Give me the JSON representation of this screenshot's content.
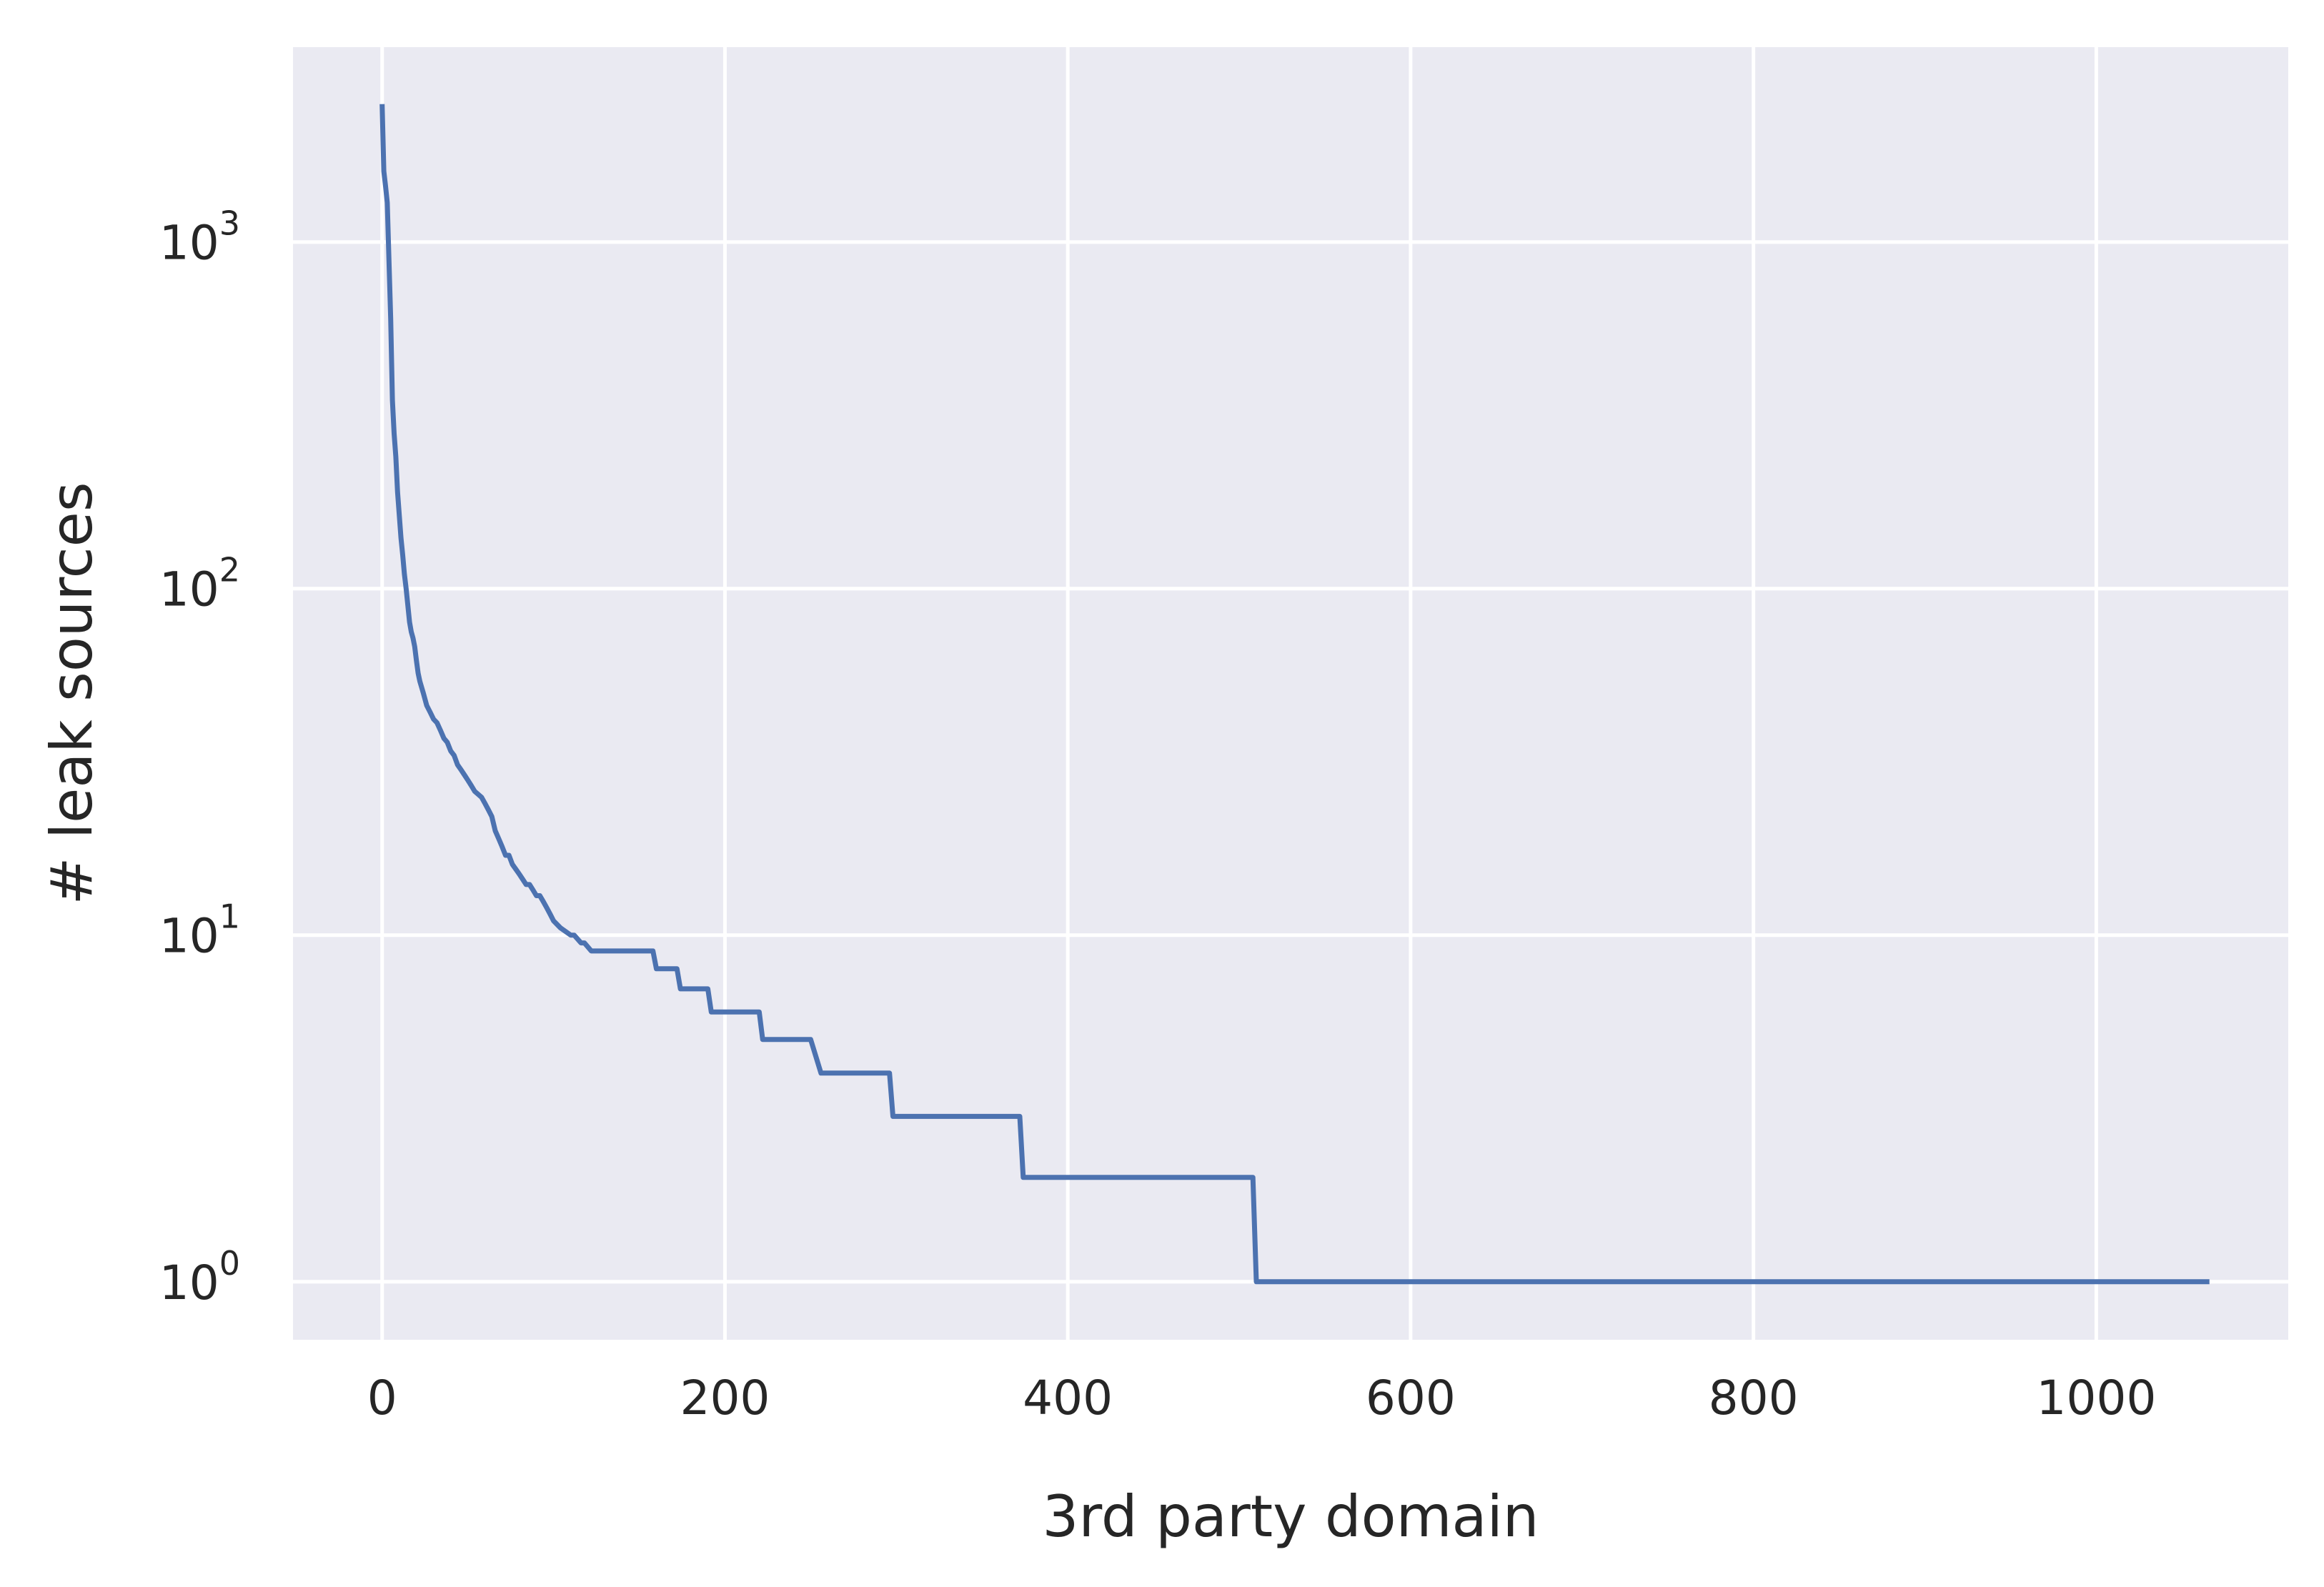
{
  "chart_data": {
    "type": "line",
    "title": "",
    "xlabel": "3rd party domain",
    "ylabel": "# leak sources",
    "xlim": [
      -52,
      1112
    ],
    "ylim": [
      0.68,
      3650
    ],
    "yscale": "log",
    "xticks": [
      0,
      200,
      400,
      600,
      800,
      1000
    ],
    "xtick_labels": [
      "0",
      "200",
      "400",
      "600",
      "800",
      "1000"
    ],
    "yticks": [
      1,
      10,
      100,
      1000
    ],
    "ytick_labels": [
      {
        "base": "10",
        "exp": "0"
      },
      {
        "base": "10",
        "exp": "1"
      },
      {
        "base": "10",
        "exp": "2"
      },
      {
        "base": "10",
        "exp": "3"
      }
    ],
    "grid": true,
    "background": "#eaeaf2",
    "grid_color": "#ffffff",
    "line_color": "#4c72b0",
    "series": [
      {
        "x": [
          0,
          1,
          2,
          3,
          5,
          6,
          7,
          8,
          9,
          11,
          12,
          13,
          14,
          16,
          17,
          18,
          19,
          20,
          21,
          22,
          24,
          26,
          28,
          30,
          32,
          34,
          36,
          38,
          40,
          42,
          44,
          46,
          48,
          50,
          52,
          54,
          56,
          58,
          60,
          62,
          64,
          66,
          68,
          70,
          72,
          74,
          76,
          78,
          80,
          82,
          84,
          86,
          88,
          90,
          92,
          94,
          96,
          98,
          100,
          104,
          110,
          112,
          116,
          118,
          122,
          124,
          130,
          136,
          140,
          158,
          160,
          172,
          174,
          190,
          192,
          220,
          222,
          250,
          256,
          296,
          298,
          372,
          374,
          508,
          510,
          1066
        ],
        "y": [
          2500,
          1600,
          1450,
          1300,
          600,
          350,
          280,
          240,
          190,
          140,
          125,
          110,
          100,
          80,
          75,
          72,
          68,
          62,
          57,
          54,
          50,
          46,
          44,
          42,
          41,
          39,
          37,
          36,
          34,
          33,
          31,
          30,
          29,
          28,
          27,
          26,
          25.5,
          25,
          24,
          23,
          22,
          20,
          19,
          18,
          17,
          17,
          16,
          15.5,
          15,
          14.5,
          14,
          14,
          13.5,
          13,
          13,
          12.5,
          12,
          11.5,
          11,
          10.5,
          10,
          10,
          9.5,
          9.5,
          9,
          9,
          9,
          9,
          9,
          9,
          8,
          8,
          7,
          7,
          6,
          6,
          5,
          5,
          4,
          4,
          3,
          3,
          2,
          2,
          1,
          1
        ]
      }
    ]
  }
}
